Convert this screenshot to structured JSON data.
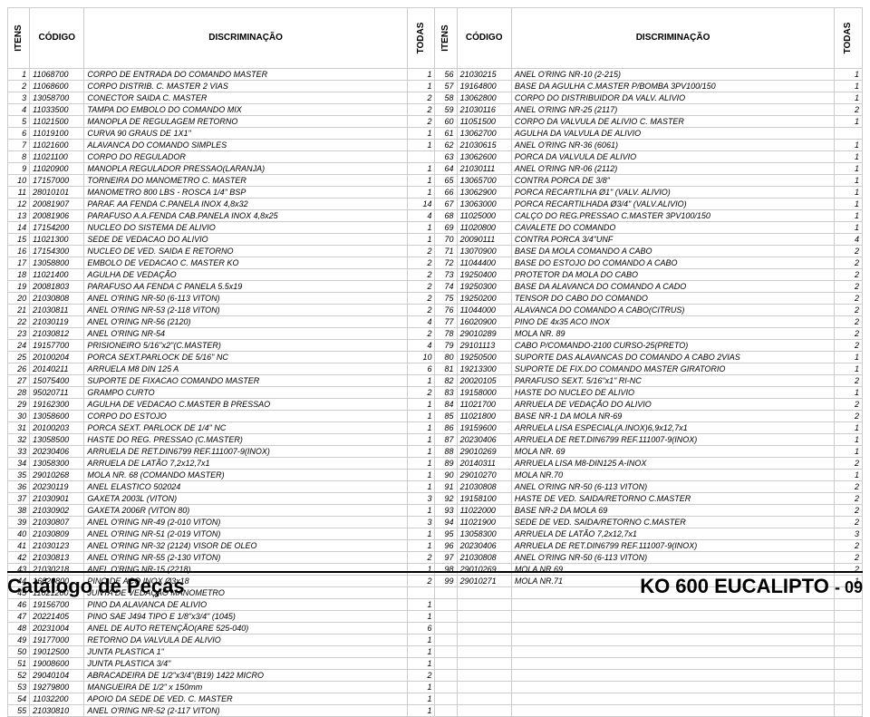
{
  "headers": {
    "itens": "ITENS",
    "codigo": "CÓDIGO",
    "discriminacao": "DISCRIMINAÇÃO",
    "todas": "TODAS"
  },
  "rows_left": [
    {
      "i": "1",
      "c": "11068700",
      "d": "CORPO DE ENTRADA DO COMANDO MASTER",
      "q": "1"
    },
    {
      "i": "2",
      "c": "11068600",
      "d": "CORPO DISTRIB. C. MASTER 2 VIAS",
      "q": "1"
    },
    {
      "i": "3",
      "c": "13058700",
      "d": "CONECTOR SAIDA C. MASTER",
      "q": "2"
    },
    {
      "i": "4",
      "c": "11033500",
      "d": "TAMPA DO EMBOLO DO COMANDO MIX",
      "q": "2"
    },
    {
      "i": "5",
      "c": "11021500",
      "d": "MANOPLA DE REGULAGEM RETORNO",
      "q": "2"
    },
    {
      "i": "6",
      "c": "11019100",
      "d": "CURVA 90 GRAUS DE 1X1\"",
      "q": "1"
    },
    {
      "i": "7",
      "c": "11021600",
      "d": "ALAVANCA DO COMANDO SIMPLES",
      "q": "1"
    },
    {
      "i": "8",
      "c": "11021100",
      "d": "CORPO DO REGULADOR",
      "q": ""
    },
    {
      "i": "9",
      "c": "11020900",
      "d": "MANOPLA REGULADOR PRESSAO(LARANJA)",
      "q": "1"
    },
    {
      "i": "10",
      "c": "17157000",
      "d": "TORNEIRA DO MANOMETRO C. MASTER",
      "q": "1"
    },
    {
      "i": "11",
      "c": "28010101",
      "d": "MANOMETRO 800 LBS - ROSCA 1/4\" BSP",
      "q": "1"
    },
    {
      "i": "12",
      "c": "20081907",
      "d": "PARAF. AA FENDA C.PANELA INOX 4,8x32",
      "q": "14"
    },
    {
      "i": "13",
      "c": "20081906",
      "d": "PARAFUSO A.A.FENDA CAB.PANELA INOX 4,8x25",
      "q": "4"
    },
    {
      "i": "14",
      "c": "17154200",
      "d": "NUCLEO DO SISTEMA DE ALIVIO",
      "q": "1"
    },
    {
      "i": "15",
      "c": "11021300",
      "d": "SEDE DE VEDACAO DO ALIVIO",
      "q": "1"
    },
    {
      "i": "16",
      "c": "17154300",
      "d": "NUCLEO DE VED. SAIDA E RETORNO",
      "q": "2"
    },
    {
      "i": "17",
      "c": "13058800",
      "d": "EMBOLO DE VEDACAO C. MASTER KO",
      "q": "2"
    },
    {
      "i": "18",
      "c": "11021400",
      "d": "AGULHA DE VEDAÇÃO",
      "q": "2"
    },
    {
      "i": "19",
      "c": "20081803",
      "d": "PARAFUSO AA FENDA C PANELA 5.5x19",
      "q": "2"
    },
    {
      "i": "20",
      "c": "21030808",
      "d": "ANEL O'RING NR-50 (6-113 VITON)",
      "q": "2"
    },
    {
      "i": "21",
      "c": "21030811",
      "d": "ANEL O'RING NR-53 (2-118 VITON)",
      "q": "2"
    },
    {
      "i": "22",
      "c": "21030119",
      "d": "ANEL O'RING NR-56 (2120)",
      "q": "4"
    },
    {
      "i": "23",
      "c": "21030812",
      "d": "ANEL O'RING NR-54",
      "q": "2"
    },
    {
      "i": "24",
      "c": "19157700",
      "d": "PRISIONEIRO 5/16\"x2\"(C.MASTER)",
      "q": "4"
    },
    {
      "i": "25",
      "c": "20100204",
      "d": "PORCA SEXT.PARLOCK DE 5/16\" NC",
      "q": "10"
    },
    {
      "i": "26",
      "c": "20140211",
      "d": "ARRUELA  M8 DIN 125 A",
      "q": "6"
    },
    {
      "i": "27",
      "c": "15075400",
      "d": "SUPORTE DE FIXACAO COMANDO MASTER",
      "q": "1"
    },
    {
      "i": "28",
      "c": "95020711",
      "d": "GRAMPO CURTO",
      "q": "2"
    },
    {
      "i": "29",
      "c": "19162300",
      "d": "AGULHA DE VEDACAO C.MASTER B PRESSAO",
      "q": "1"
    },
    {
      "i": "30",
      "c": "13058600",
      "d": "CORPO DO ESTOJO",
      "q": "1"
    },
    {
      "i": "31",
      "c": "20100203",
      "d": "PORCA SEXT. PARLOCK DE 1/4\" NC",
      "q": "1"
    },
    {
      "i": "32",
      "c": "13058500",
      "d": "HASTE DO REG. PRESSAO (C.MASTER)",
      "q": "1"
    },
    {
      "i": "33",
      "c": "20230406",
      "d": "ARRUELA DE RET.DIN6799 REF.111007-9(INOX)",
      "q": "1"
    },
    {
      "i": "34",
      "c": "13058300",
      "d": "ARRUELA DE LATÃO 7,2x12,7x1",
      "q": "1"
    },
    {
      "i": "35",
      "c": "29010268",
      "d": "MOLA NR. 68 (COMANDO MASTER)",
      "q": "1"
    },
    {
      "i": "36",
      "c": "20230119",
      "d": "ANEL ELASTICO 502024",
      "q": "1"
    },
    {
      "i": "37",
      "c": "21030901",
      "d": "GAXETA 2003L (VITON)",
      "q": "3"
    },
    {
      "i": "38",
      "c": "21030902",
      "d": "GAXETA 2006R (VITON 80)",
      "q": "1"
    },
    {
      "i": "39",
      "c": "21030807",
      "d": "ANEL O'RING NR-49 (2-010 VITON)",
      "q": "3"
    },
    {
      "i": "40",
      "c": "21030809",
      "d": "ANEL O'RING NR-51 (2-019 VITON)",
      "q": "1"
    },
    {
      "i": "41",
      "c": "21030123",
      "d": "ANEL O'RING NR-32 (2124) VISOR DE OLEO",
      "q": "1"
    },
    {
      "i": "42",
      "c": "21030813",
      "d": "ANEL O'RING NR-55 (2-130 VITON)",
      "q": "2"
    },
    {
      "i": "43",
      "c": "21030218",
      "d": "ANEL O'RING NR-15 (2218)",
      "q": "1"
    },
    {
      "i": "44",
      "c": "16020800",
      "d": "PINO DE ACO INOX Ø3x18",
      "q": "2"
    },
    {
      "i": "45",
      "c": "11021200",
      "d": "JUNTA DE VEDAÇÃO MANOMETRO",
      "q": ""
    },
    {
      "i": "46",
      "c": "19156700",
      "d": "PINO DA ALAVANCA DE ALIVIO",
      "q": "1"
    },
    {
      "i": "47",
      "c": "20221405",
      "d": "PINO SAE J494 TIPO E 1/8\"x3/4\" (1045)",
      "q": "1"
    },
    {
      "i": "48",
      "c": "20231004",
      "d": "ANEL DE AUTO RETENÇÃO(ARE 525-040)",
      "q": "6"
    },
    {
      "i": "49",
      "c": "19177000",
      "d": "RETORNO DA VALVULA DE ALIVIO",
      "q": "1"
    },
    {
      "i": "50",
      "c": "19012500",
      "d": "JUNTA PLASTICA 1\"",
      "q": "1"
    },
    {
      "i": "51",
      "c": "19008600",
      "d": "JUNTA PLASTICA 3/4\"",
      "q": "1"
    },
    {
      "i": "52",
      "c": "29040104",
      "d": "ABRACADEIRA DE 1/2\"x3/4\"(B19) 1422 MICRO",
      "q": "2"
    },
    {
      "i": "53",
      "c": "19279800",
      "d": "MANGUEIRA DE 1/2\" x 150mm",
      "q": "1"
    },
    {
      "i": "54",
      "c": "11032200",
      "d": "APOIO DA SEDE DE VED. C. MASTER",
      "q": "1"
    },
    {
      "i": "55",
      "c": "21030810",
      "d": "ANEL O'RING NR-52 (2-117 VITON)",
      "q": "1"
    }
  ],
  "rows_right": [
    {
      "i": "56",
      "c": "21030215",
      "d": "ANEL O'RING NR-10 (2-215)",
      "q": "1"
    },
    {
      "i": "57",
      "c": "19164800",
      "d": "BASE DA AGULHA C.MASTER P/BOMBA 3PV100/150",
      "q": "1"
    },
    {
      "i": "58",
      "c": "13062800",
      "d": "CORPO DO DISTRIBUIDOR DA VALV. ALIVIO",
      "q": "1"
    },
    {
      "i": "59",
      "c": "21030116",
      "d": "ANEL O'RING NR-25 (2117)",
      "q": "2"
    },
    {
      "i": "60",
      "c": "11051500",
      "d": "CORPO DA VALVULA DE ALIVIO C. MASTER",
      "q": "1"
    },
    {
      "i": "61",
      "c": "13062700",
      "d": "AGULHA DA VALVULA DE ALIVIO",
      "q": ""
    },
    {
      "i": "62",
      "c": "21030615",
      "d": "ANEL O'RING NR-36 (6061)",
      "q": "1"
    },
    {
      "i": "63",
      "c": "13062600",
      "d": "PORCA DA VALVULA DE ALIVIO",
      "q": "1"
    },
    {
      "i": "64",
      "c": "21030111",
      "d": "ANEL O'RING NR-06 (2112)",
      "q": "1"
    },
    {
      "i": "65",
      "c": "13065700",
      "d": "CONTRA PORCA DE 3/8\"",
      "q": "1"
    },
    {
      "i": "66",
      "c": "13062900",
      "d": "PORCA RECARTILHA Ø1\" (VALV. ALIVIO)",
      "q": "1"
    },
    {
      "i": "67",
      "c": "13063000",
      "d": "PORCA RECARTILHADA Ø3/4\" (VALV.ALIVIO)",
      "q": "1"
    },
    {
      "i": "68",
      "c": "11025000",
      "d": "CALÇO DO REG.PRESSAO C.MASTER 3PV100/150",
      "q": "1"
    },
    {
      "i": "69",
      "c": "11020800",
      "d": "CAVALETE DO COMANDO",
      "q": "1"
    },
    {
      "i": "70",
      "c": "20090111",
      "d": "CONTRA PORCA 3/4\"UNF",
      "q": "4"
    },
    {
      "i": "71",
      "c": "13070900",
      "d": "BASE DA MOLA COMANDO A CABO",
      "q": "2"
    },
    {
      "i": "72",
      "c": "11044400",
      "d": "BASE DO ESTOJO DO COMANDO A CABO",
      "q": "2"
    },
    {
      "i": "73",
      "c": "19250400",
      "d": "PROTETOR DA MOLA DO CABO",
      "q": "2"
    },
    {
      "i": "74",
      "c": "19250300",
      "d": "BASE DA ALAVANCA DO COMANDO A CADO",
      "q": "2"
    },
    {
      "i": "75",
      "c": "19250200",
      "d": "TENSOR DO CABO DO COMANDO",
      "q": "2"
    },
    {
      "i": "76",
      "c": "11044000",
      "d": "ALAVANCA DO COMANDO A CABO(CITRUS)",
      "q": "2"
    },
    {
      "i": "77",
      "c": "16020900",
      "d": "PINO DE 4x35 ACO INOX",
      "q": "2"
    },
    {
      "i": "78",
      "c": "29010289",
      "d": "MOLA NR. 89",
      "q": "2"
    },
    {
      "i": "79",
      "c": "29101113",
      "d": "CABO P/COMANDO-2100 CURSO-25(PRETO)",
      "q": "2"
    },
    {
      "i": "80",
      "c": "19250500",
      "d": "SUPORTE DAS ALAVANCAS DO COMANDO A CABO 2VIAS",
      "q": "1"
    },
    {
      "i": "81",
      "c": "19213300",
      "d": "SUPORTE DE FIX.DO COMANDO MASTER GIRATORIO",
      "q": "1"
    },
    {
      "i": "82",
      "c": "20020105",
      "d": "PARAFUSO SEXT. 5/16\"x1\" RI-NC",
      "q": "2"
    },
    {
      "i": "83",
      "c": "19158000",
      "d": "HASTE DO NUCLEO DE ALIVIO",
      "q": "1"
    },
    {
      "i": "84",
      "c": "11021700",
      "d": "ARRUELA DE VEDAÇÃO DO ALIVIO",
      "q": "2"
    },
    {
      "i": "85",
      "c": "11021800",
      "d": "BASE NR-1 DA MOLA NR-69",
      "q": "2"
    },
    {
      "i": "86",
      "c": "19159600",
      "d": "ARRUELA LISA ESPECIAL(A.INOX)6,9x12,7x1",
      "q": "1"
    },
    {
      "i": "87",
      "c": "20230406",
      "d": "ARRUELA DE RET.DIN6799 REF.111007-9(INOX)",
      "q": "1"
    },
    {
      "i": "88",
      "c": "29010269",
      "d": "MOLA NR. 69",
      "q": "1"
    },
    {
      "i": "89",
      "c": "20140311",
      "d": "ARRUELA LISA M8-DIN125 A-INOX",
      "q": "2"
    },
    {
      "i": "90",
      "c": "29010270",
      "d": "MOLA NR.70",
      "q": "1"
    },
    {
      "i": "91",
      "c": "21030808",
      "d": "ANEL O'RING NR-50 (6-113 VITON)",
      "q": "2"
    },
    {
      "i": "92",
      "c": "19158100",
      "d": "HASTE DE VED. SAIDA/RETORNO C.MASTER",
      "q": "2"
    },
    {
      "i": "93",
      "c": "11022000",
      "d": "BASE NR-2 DA MOLA 69",
      "q": "2"
    },
    {
      "i": "94",
      "c": "11021900",
      "d": "SEDE DE VED. SAIDA/RETORNO C.MASTER",
      "q": "2"
    },
    {
      "i": "95",
      "c": "13058300",
      "d": "ARRUELA DE LATÃO 7,2x12,7x1",
      "q": "3"
    },
    {
      "i": "96",
      "c": "20230406",
      "d": "ARRUELA DE RET.DIN6799 REF.111007-9(INOX)",
      "q": "2"
    },
    {
      "i": "97",
      "c": "21030808",
      "d": "ANEL O'RING NR-50 (6-113 VITON)",
      "q": "2"
    },
    {
      "i": "98",
      "c": "29010269",
      "d": "MOLA NR.69",
      "q": "2"
    },
    {
      "i": "99",
      "c": "29010271",
      "d": "MOLA NR.71",
      "q": "1"
    }
  ],
  "footer": {
    "left": "Catálogo de Peças",
    "right_title": "KO 600 EUCALIPTO",
    "right_page": "- 09"
  }
}
